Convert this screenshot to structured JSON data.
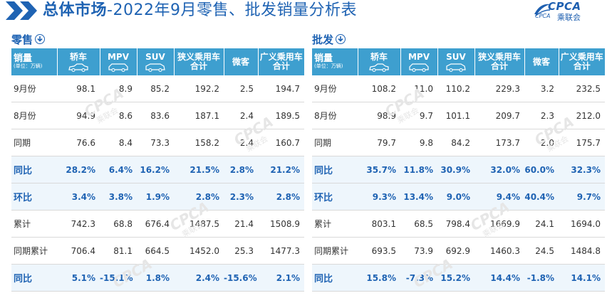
{
  "header": {
    "title_bold": "总体市场",
    "title_rest": "-2022年9月零售、批发销量分析表",
    "logo_text": "CPCA",
    "logo_cn": "乘联会",
    "logo_small": "CPCA"
  },
  "columns": {
    "first_big": "销量",
    "first_small": "(单位：万辆)",
    "sedan": "轿车",
    "mpv": "MPV",
    "suv": "SUV",
    "narrow_line1": "狭义乘用车",
    "narrow_line2": "合计",
    "micro": "微客",
    "broad_line1": "广义乘用车",
    "broad_line2": "合计"
  },
  "watermark": {
    "text": "CPCA",
    "sub": "乘联会"
  },
  "retail": {
    "title": "零售",
    "rows": [
      {
        "label": "9月份",
        "values": [
          "98.1",
          "8.9",
          "85.2",
          "192.2",
          "2.5",
          "194.7"
        ]
      },
      {
        "label": "8月份",
        "values": [
          "94.9",
          "8.6",
          "83.6",
          "187.1",
          "2.4",
          "189.5"
        ]
      },
      {
        "label": "同期",
        "values": [
          "76.6",
          "8.4",
          "73.3",
          "158.2",
          "2.4",
          "160.7"
        ]
      },
      {
        "label": "同比",
        "values": [
          "28.2%",
          "6.4%",
          "16.2%",
          "21.5%",
          "2.8%",
          "21.2%"
        ]
      },
      {
        "label": "环比",
        "values": [
          "3.4%",
          "3.8%",
          "1.9%",
          "2.8%",
          "2.3%",
          "2.8%"
        ]
      },
      {
        "label": "累计",
        "values": [
          "742.3",
          "68.8",
          "676.4",
          "1487.5",
          "21.4",
          "1508.9"
        ]
      },
      {
        "label": "同期累计",
        "values": [
          "706.4",
          "81.1",
          "664.5",
          "1452.0",
          "25.3",
          "1477.3"
        ]
      },
      {
        "label": "同比",
        "values": [
          "5.1%",
          "-15.1%",
          "1.8%",
          "2.4%",
          "-15.6%",
          "2.1%"
        ]
      }
    ]
  },
  "wholesale": {
    "title": "批发",
    "rows": [
      {
        "label": "9月份",
        "values": [
          "108.2",
          "11.0",
          "110.2",
          "229.3",
          "3.2",
          "232.5"
        ]
      },
      {
        "label": "8月份",
        "values": [
          "98.9",
          "9.7",
          "101.1",
          "209.7",
          "2.3",
          "212.0"
        ]
      },
      {
        "label": "同期",
        "values": [
          "79.7",
          "9.8",
          "84.2",
          "173.7",
          "2.0",
          "175.7"
        ]
      },
      {
        "label": "同比",
        "values": [
          "35.7%",
          "11.8%",
          "30.9%",
          "32.0%",
          "60.0%",
          "32.3%"
        ]
      },
      {
        "label": "环比",
        "values": [
          "9.3%",
          "13.4%",
          "9.0%",
          "9.4%",
          "40.4%",
          "9.7%"
        ]
      },
      {
        "label": "累计",
        "values": [
          "803.1",
          "68.5",
          "798.4",
          "1669.9",
          "24.1",
          "1694.0"
        ]
      },
      {
        "label": "同期累计",
        "values": [
          "693.5",
          "73.9",
          "692.9",
          "1460.3",
          "24.5",
          "1484.8"
        ]
      },
      {
        "label": "同比",
        "values": [
          "15.8%",
          "-7.3%",
          "15.2%",
          "14.4%",
          "-1.8%",
          "14.1%"
        ]
      }
    ]
  },
  "highlight_rows": [
    3,
    4,
    7
  ],
  "colors": {
    "brand_blue": "#1f63b3",
    "header_bg": "#3e9fcf",
    "highlight_row": "#eef6fc"
  },
  "icons": {
    "header": "double-chevron-icon",
    "panel_title": "download-circle-icon",
    "sedan": "sedan-car-icon",
    "mpv": "mpv-car-icon",
    "suv": "suv-car-icon"
  }
}
